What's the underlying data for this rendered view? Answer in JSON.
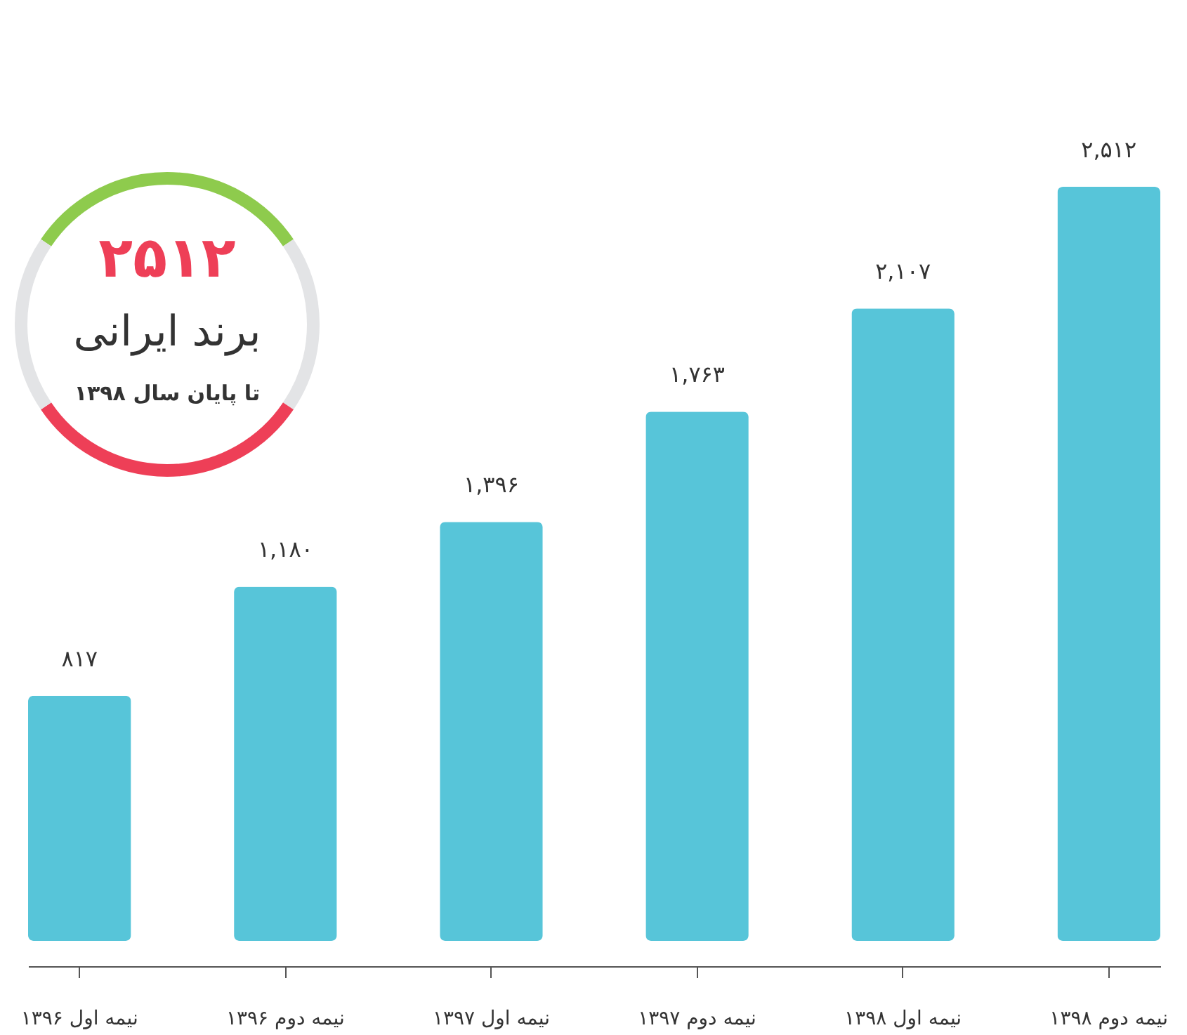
{
  "chart_data": {
    "type": "bar",
    "categories": [
      "نیمه اول ۱۳۹۶",
      "نیمه دوم ۱۳۹۶",
      "نیمه اول ۱۳۹۷",
      "نیمه دوم ۱۳۹۷",
      "نیمه اول ۱۳۹۸",
      "نیمه دوم ۱۳۹۸"
    ],
    "values": [
      817,
      1180,
      1396,
      1763,
      2107,
      2512
    ],
    "value_labels": [
      "۸۱۷",
      "۱,۱۸۰",
      "۱,۳۹۶",
      "۱,۷۶۳",
      "۲,۱۰۷",
      "۲,۵۱۲"
    ],
    "color": "#57c5d9",
    "tick_labels": "x",
    "grid": false,
    "annotations": [
      "۲۵۱۲",
      "برند ایرانی",
      "تا پایان سال ۱۳۹۸"
    ]
  }
}
